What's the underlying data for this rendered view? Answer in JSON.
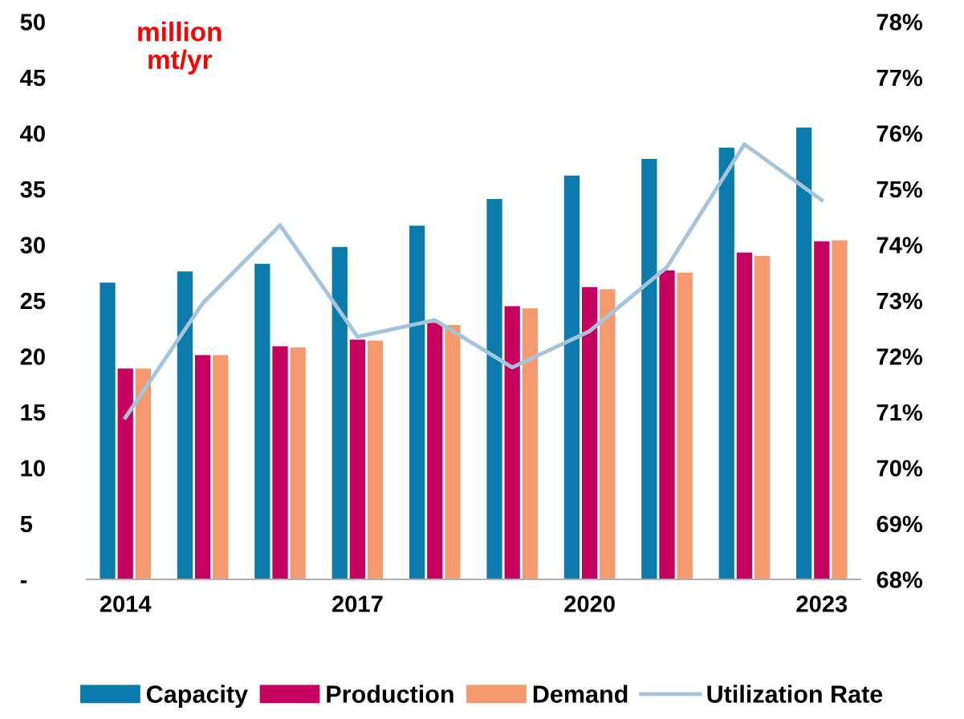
{
  "chart_data": {
    "type": "bar",
    "categories": [
      "2014",
      null,
      null,
      "2017",
      null,
      null,
      "2020",
      null,
      null,
      "2023"
    ],
    "series": [
      {
        "name": "Capacity",
        "color": "#0b7bab",
        "values": [
          26.6,
          27.6,
          28.3,
          29.8,
          31.7,
          34.1,
          36.2,
          37.7,
          38.7,
          40.5
        ]
      },
      {
        "name": "Production",
        "color": "#c5005f",
        "values": [
          18.9,
          20.1,
          20.9,
          21.5,
          23.0,
          24.5,
          26.2,
          27.7,
          29.3,
          30.3
        ]
      },
      {
        "name": "Demand",
        "color": "#f59a6e",
        "values": [
          18.9,
          20.1,
          20.8,
          21.4,
          22.8,
          24.3,
          26.0,
          27.5,
          29.0,
          30.4
        ]
      },
      {
        "name": "Utilization Rate",
        "type": "line",
        "axis": "y2",
        "color": "#a5c4dc",
        "values": [
          70.9,
          72.95,
          74.35,
          72.35,
          72.65,
          71.8,
          72.45,
          73.6,
          75.8,
          74.8
        ]
      }
    ],
    "ylim": [
      0,
      50
    ],
    "yticks": [
      {
        "value": 0,
        "label": "-"
      },
      5,
      10,
      15,
      20,
      25,
      30,
      35,
      40,
      45,
      50
    ],
    "y2lim": [
      68,
      78
    ],
    "y2ticks": [
      {
        "value": 68,
        "label": "68%"
      },
      {
        "value": 69,
        "label": "69%"
      },
      {
        "value": 70,
        "label": "70%"
      },
      {
        "value": 71,
        "label": "71%"
      },
      {
        "value": 72,
        "label": "72%"
      },
      {
        "value": 73,
        "label": "73%"
      },
      {
        "value": 74,
        "label": "74%"
      },
      {
        "value": 75,
        "label": "75%"
      },
      {
        "value": 76,
        "label": "76%"
      },
      {
        "value": 77,
        "label": "77%"
      },
      {
        "value": 78,
        "label": "78%"
      }
    ],
    "annotations": [
      "million\nmt/yr"
    ],
    "grid": false,
    "legend": "bottom"
  }
}
